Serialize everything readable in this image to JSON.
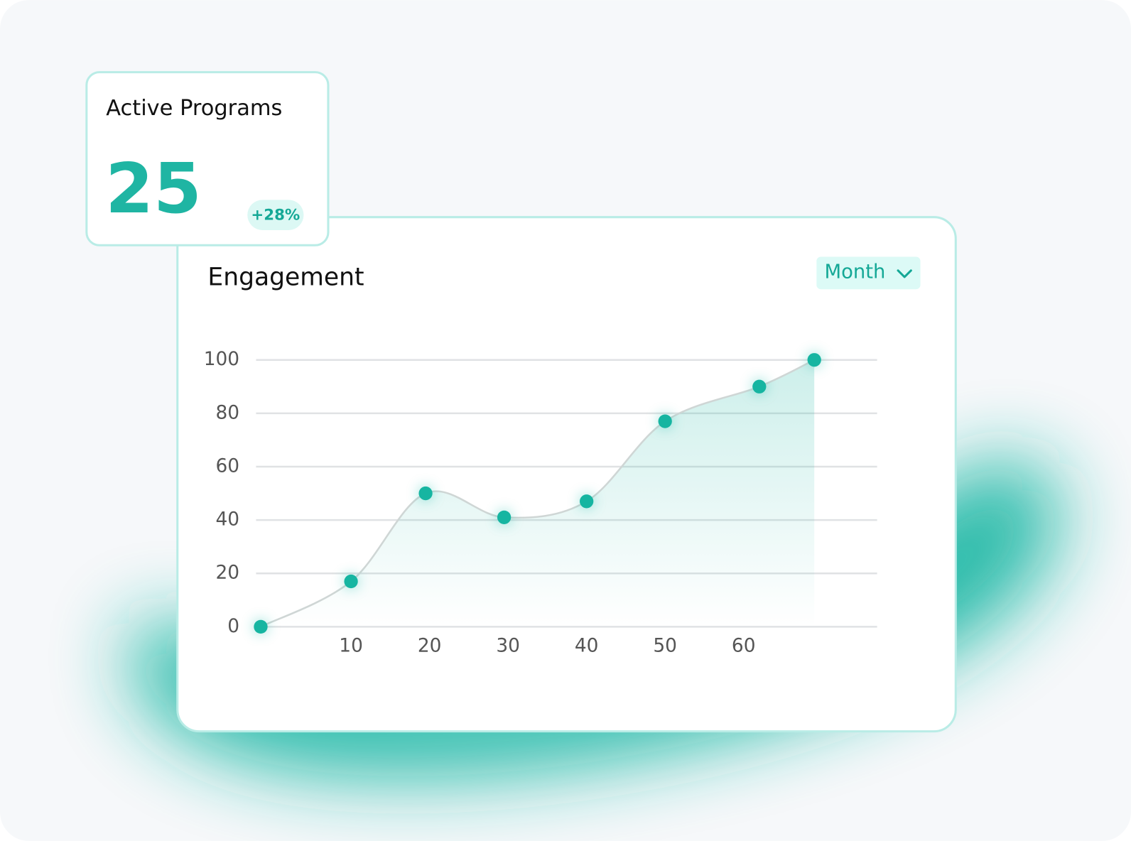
{
  "stat_card": {
    "title": "Active Programs",
    "value": 25,
    "change": "+28%"
  },
  "controls": {
    "period": "Month"
  },
  "chart_data": {
    "type": "line",
    "title": "Engagement",
    "x": [
      -1.5,
      10,
      19.5,
      29.5,
      40,
      50,
      62,
      69
    ],
    "values": [
      0,
      17,
      50,
      41,
      47,
      77,
      90,
      100
    ],
    "color": "#19b5a1",
    "xlim": [
      -2,
      77
    ],
    "xticks": [
      10,
      20,
      30,
      40,
      50,
      60
    ],
    "ylim": [
      0,
      100
    ],
    "yticks": [
      0,
      20,
      40,
      60,
      80,
      100
    ],
    "grid": true,
    "area": true
  }
}
